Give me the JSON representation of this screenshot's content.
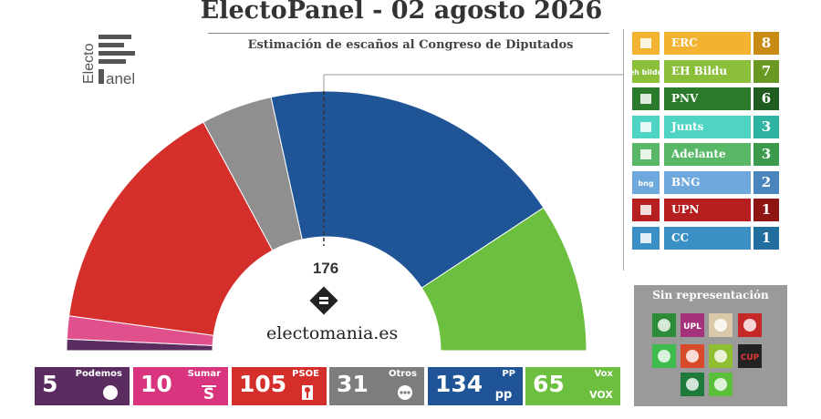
{
  "header": {
    "title": "ElectoPanel - 02 agosto 2026",
    "subtitle": "Estimación de escaños al Congreso de Diputados"
  },
  "logo": {
    "line1": "Electo",
    "line2": "anel"
  },
  "brand": {
    "site": "electomania.es"
  },
  "majority": {
    "value": 176,
    "label": "176"
  },
  "chart_data": {
    "type": "hemicycle",
    "total_seats": 350,
    "majority": 176,
    "series": [
      {
        "name": "Podemos",
        "seats": 5,
        "color": "#5b2c5f"
      },
      {
        "name": "Sumar",
        "seats": 10,
        "color": "#e0508c"
      },
      {
        "name": "PSOE",
        "seats": 105,
        "color": "#d42f2a"
      },
      {
        "name": "Otros",
        "seats": 31,
        "color": "#8f8f8f"
      },
      {
        "name": "PP",
        "seats": 134,
        "color": "#1f5596"
      },
      {
        "name": "Vox",
        "seats": 65,
        "color": "#6cbf3f"
      }
    ]
  },
  "party_boxes": [
    {
      "name": "Podemos",
      "seats": "5",
      "color": "#5b2c5f",
      "icon": "circle-icon"
    },
    {
      "name": "Sumar",
      "seats": "10",
      "color": "#d8357e",
      "icon": "sumar-icon"
    },
    {
      "name": "PSOE",
      "seats": "105",
      "color": "#d42f2a",
      "icon": "psoe-rose-icon"
    },
    {
      "name": "Otros",
      "seats": "31",
      "color": "#7d7d7d",
      "icon": "ellipsis-icon"
    },
    {
      "name": "PP",
      "seats": "134",
      "color": "#1f5596",
      "icon": "pp-icon"
    },
    {
      "name": "Vox",
      "seats": "65",
      "color": "#6cbf3f",
      "icon": "vox-icon"
    }
  ],
  "legend": [
    {
      "name": "ERC",
      "seats": "8",
      "bar_color": "#f2b232",
      "val_color": "#c98b14",
      "icon_color": "#f2b232",
      "icon_text": ""
    },
    {
      "name": "EH Bildu",
      "seats": "7",
      "bar_color": "#8bbf3a",
      "val_color": "#6a9a24",
      "icon_color": "#8bbf3a",
      "icon_text": "eh bildu"
    },
    {
      "name": "PNV",
      "seats": "6",
      "bar_color": "#2c7a2c",
      "val_color": "#1f5c1f",
      "icon_color": "#2c7a2c",
      "icon_text": ""
    },
    {
      "name": "Junts",
      "seats": "3",
      "bar_color": "#4fd3c2",
      "val_color": "#2fb3a2",
      "icon_color": "#4fd3c2",
      "icon_text": ""
    },
    {
      "name": "Adelante",
      "seats": "3",
      "bar_color": "#58b868",
      "val_color": "#3b9a4c",
      "icon_color": "#58b868",
      "icon_text": ""
    },
    {
      "name": "BNG",
      "seats": "2",
      "bar_color": "#6fa8dc",
      "val_color": "#4a86be",
      "icon_color": "#6fa8dc",
      "icon_text": "bng"
    },
    {
      "name": "UPN",
      "seats": "1",
      "bar_color": "#b51f1f",
      "val_color": "#8f1414",
      "icon_color": "#b51f1f",
      "icon_text": ""
    },
    {
      "name": "CC",
      "seats": "1",
      "bar_color": "#3a8fc4",
      "val_color": "#226f9f",
      "icon_color": "#3a8fc4",
      "icon_text": ""
    }
  ],
  "sin_representacion": {
    "title": "Sin representación",
    "icons": [
      {
        "name": "party-icon-1",
        "color": "#2e8b3a"
      },
      {
        "name": "upl-icon",
        "color": "#a4327a",
        "text": "UPL"
      },
      {
        "name": "party-icon-3",
        "color": "#d9c9a8"
      },
      {
        "name": "party-icon-4",
        "color": "#c62828"
      },
      {
        "name": "party-icon-5",
        "color": "#3dbb4c"
      },
      {
        "name": "party-icon-6",
        "color": "#d94a2a"
      },
      {
        "name": "party-icon-7",
        "color": "#8fbf30"
      },
      {
        "name": "cup-icon",
        "color": "#222222",
        "text": "CUP"
      },
      {
        "name": "party-icon-9",
        "color": "#1e7a3a"
      },
      {
        "name": "party-icon-10",
        "color": "#5cbf3a"
      }
    ]
  }
}
